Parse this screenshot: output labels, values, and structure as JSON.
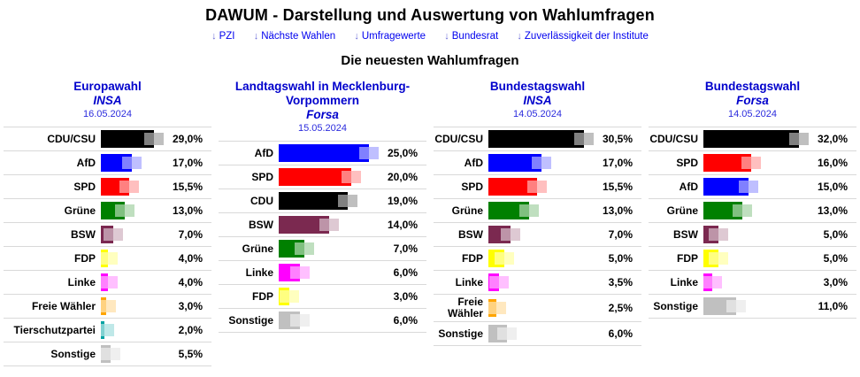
{
  "page": {
    "title": "DAWUM - Darstellung und Auswertung von Wahlumfragen",
    "subtitle": "Die neuesten Wahlumfragen",
    "nav_arrow": "↓",
    "nav": [
      {
        "label": "PZI"
      },
      {
        "label": "Nächste Wahlen"
      },
      {
        "label": "Umfragewerte"
      },
      {
        "label": "Bundesrat"
      },
      {
        "label": "Zuverlässigkeit der Institute"
      }
    ]
  },
  "chart_data": [
    {
      "type": "bar",
      "title": "Europawahl",
      "institute": "INSA",
      "date": "16.05.2024",
      "orientation": "horizontal",
      "xlim": [
        0,
        29
      ],
      "categories": [
        "CDU/CSU",
        "AfD",
        "SPD",
        "Grüne",
        "BSW",
        "FDP",
        "Linke",
        "Freie Wähler",
        "Tierschutzpartei",
        "Sonstige"
      ],
      "values": [
        29.0,
        17.0,
        15.5,
        13.0,
        7.0,
        4.0,
        4.0,
        3.0,
        2.0,
        5.5
      ],
      "value_labels": [
        "29,0%",
        "17,0%",
        "15,5%",
        "13,0%",
        "7,0%",
        "4,0%",
        "4,0%",
        "3,0%",
        "2,0%",
        "5,5%"
      ],
      "colors": [
        "#000000",
        "#0000ff",
        "#ff0000",
        "#008000",
        "#7b2950",
        "#ffff00",
        "#ff00ff",
        "#ffa500",
        "#00a3a3",
        "#c0c0c0"
      ]
    },
    {
      "type": "bar",
      "title": "Landtagswahl in Mecklenburg-Vorpommern",
      "institute": "Forsa",
      "date": "15.05.2024",
      "orientation": "horizontal",
      "xlim": [
        0,
        25
      ],
      "categories": [
        "AfD",
        "SPD",
        "CDU",
        "BSW",
        "Grüne",
        "Linke",
        "FDP",
        "Sonstige"
      ],
      "values": [
        25.0,
        20.0,
        19.0,
        14.0,
        7.0,
        6.0,
        3.0,
        6.0
      ],
      "value_labels": [
        "25,0%",
        "20,0%",
        "19,0%",
        "14,0%",
        "7,0%",
        "6,0%",
        "3,0%",
        "6,0%"
      ],
      "colors": [
        "#0000ff",
        "#ff0000",
        "#000000",
        "#7b2950",
        "#008000",
        "#ff00ff",
        "#ffff00",
        "#c0c0c0"
      ]
    },
    {
      "type": "bar",
      "title": "Bundestagswahl",
      "institute": "INSA",
      "date": "14.05.2024",
      "orientation": "horizontal",
      "xlim": [
        0,
        30.5
      ],
      "categories": [
        "CDU/CSU",
        "AfD",
        "SPD",
        "Grüne",
        "BSW",
        "FDP",
        "Linke",
        "Freie Wähler",
        "Sonstige"
      ],
      "values": [
        30.5,
        17.0,
        15.5,
        13.0,
        7.0,
        5.0,
        3.5,
        2.5,
        6.0
      ],
      "value_labels": [
        "30,5%",
        "17,0%",
        "15,5%",
        "13,0%",
        "7,0%",
        "5,0%",
        "3,5%",
        "2,5%",
        "6,0%"
      ],
      "colors": [
        "#000000",
        "#0000ff",
        "#ff0000",
        "#008000",
        "#7b2950",
        "#ffff00",
        "#ff00ff",
        "#ffa500",
        "#c0c0c0"
      ]
    },
    {
      "type": "bar",
      "title": "Bundestagswahl",
      "institute": "Forsa",
      "date": "14.05.2024",
      "orientation": "horizontal",
      "xlim": [
        0,
        32
      ],
      "categories": [
        "CDU/CSU",
        "SPD",
        "AfD",
        "Grüne",
        "BSW",
        "FDP",
        "Linke",
        "Sonstige"
      ],
      "values": [
        32.0,
        16.0,
        15.0,
        13.0,
        5.0,
        5.0,
        3.0,
        11.0
      ],
      "value_labels": [
        "32,0%",
        "16,0%",
        "15,0%",
        "13,0%",
        "5,0%",
        "5,0%",
        "3,0%",
        "11,0%"
      ],
      "colors": [
        "#000000",
        "#ff0000",
        "#0000ff",
        "#008000",
        "#7b2950",
        "#ffff00",
        "#ff00ff",
        "#c0c0c0"
      ]
    }
  ]
}
